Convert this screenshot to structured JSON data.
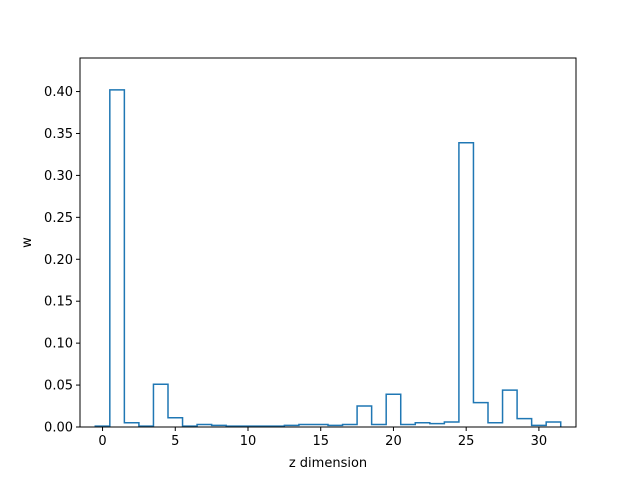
{
  "chart_data": {
    "type": "bar",
    "style": "step-histogram",
    "title": "",
    "xlabel": "z dimension",
    "ylabel": "w",
    "xlim": [
      -1.55,
      32.55
    ],
    "ylim": [
      0,
      0.44
    ],
    "xticks": [
      0,
      5,
      10,
      15,
      20,
      25,
      30
    ],
    "yticks": [
      0.0,
      0.05,
      0.1,
      0.15,
      0.2,
      0.25,
      0.3,
      0.35,
      0.4
    ],
    "ytick_labels": [
      "0.00",
      "0.05",
      "0.10",
      "0.15",
      "0.20",
      "0.25",
      "0.30",
      "0.35",
      "0.40"
    ],
    "grid": false,
    "line_color": "#1f77b4",
    "x": [
      0,
      1,
      2,
      3,
      4,
      5,
      6,
      7,
      8,
      9,
      10,
      11,
      12,
      13,
      14,
      15,
      16,
      17,
      18,
      19,
      20,
      21,
      22,
      23,
      24,
      25,
      26,
      27,
      28,
      29,
      30,
      31
    ],
    "values": [
      0.001,
      0.402,
      0.005,
      0.001,
      0.051,
      0.011,
      0.001,
      0.003,
      0.002,
      0.001,
      0.001,
      0.001,
      0.001,
      0.002,
      0.003,
      0.003,
      0.002,
      0.003,
      0.025,
      0.003,
      0.039,
      0.003,
      0.005,
      0.004,
      0.006,
      0.339,
      0.029,
      0.005,
      0.044,
      0.01,
      0.002,
      0.006
    ]
  }
}
